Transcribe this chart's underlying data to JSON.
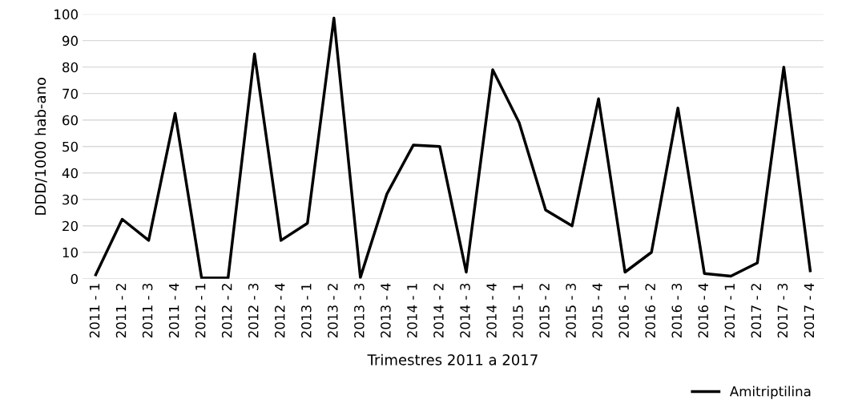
{
  "chart_data": {
    "type": "line",
    "xlabel": "Trimestres 2011 a 2017",
    "ylabel": "DDD/1000 hab-ano",
    "categories": [
      "2011 - 1",
      "2011 - 2",
      "2011 - 3",
      "2011 - 4",
      "2012 - 1",
      "2012 - 2",
      "2012 - 3",
      "2012 - 4",
      "2013 - 1",
      "2013 - 2",
      "2013 - 3",
      "2013 - 4",
      "2014 - 1",
      "2014 - 2",
      "2014 - 3",
      "2014 - 4",
      "2015 - 1",
      "2015 - 2",
      "2015 - 3",
      "2015 - 4",
      "2016 - 1",
      "2016 - 2",
      "2016 - 3",
      "2016 - 4",
      "2017 - 1",
      "2017 - 2",
      "2017 - 3",
      "2017 - 4"
    ],
    "series": [
      {
        "name": "Amitriptilina",
        "color": "#000000",
        "values": [
          1.5,
          22.5,
          14.5,
          62.5,
          0.3,
          0.3,
          85,
          14.5,
          21,
          98.5,
          0.5,
          32,
          50.5,
          50,
          2.5,
          79,
          59,
          26,
          20,
          68,
          2.5,
          10,
          64.5,
          2,
          1,
          6,
          80,
          3
        ]
      }
    ],
    "ylim": [
      0,
      100
    ],
    "yticks": [
      0,
      10,
      20,
      30,
      40,
      50,
      60,
      70,
      80,
      90,
      100
    ],
    "grid": "y",
    "legend": "bottom right",
    "marker": "none",
    "line_style": "solid"
  }
}
